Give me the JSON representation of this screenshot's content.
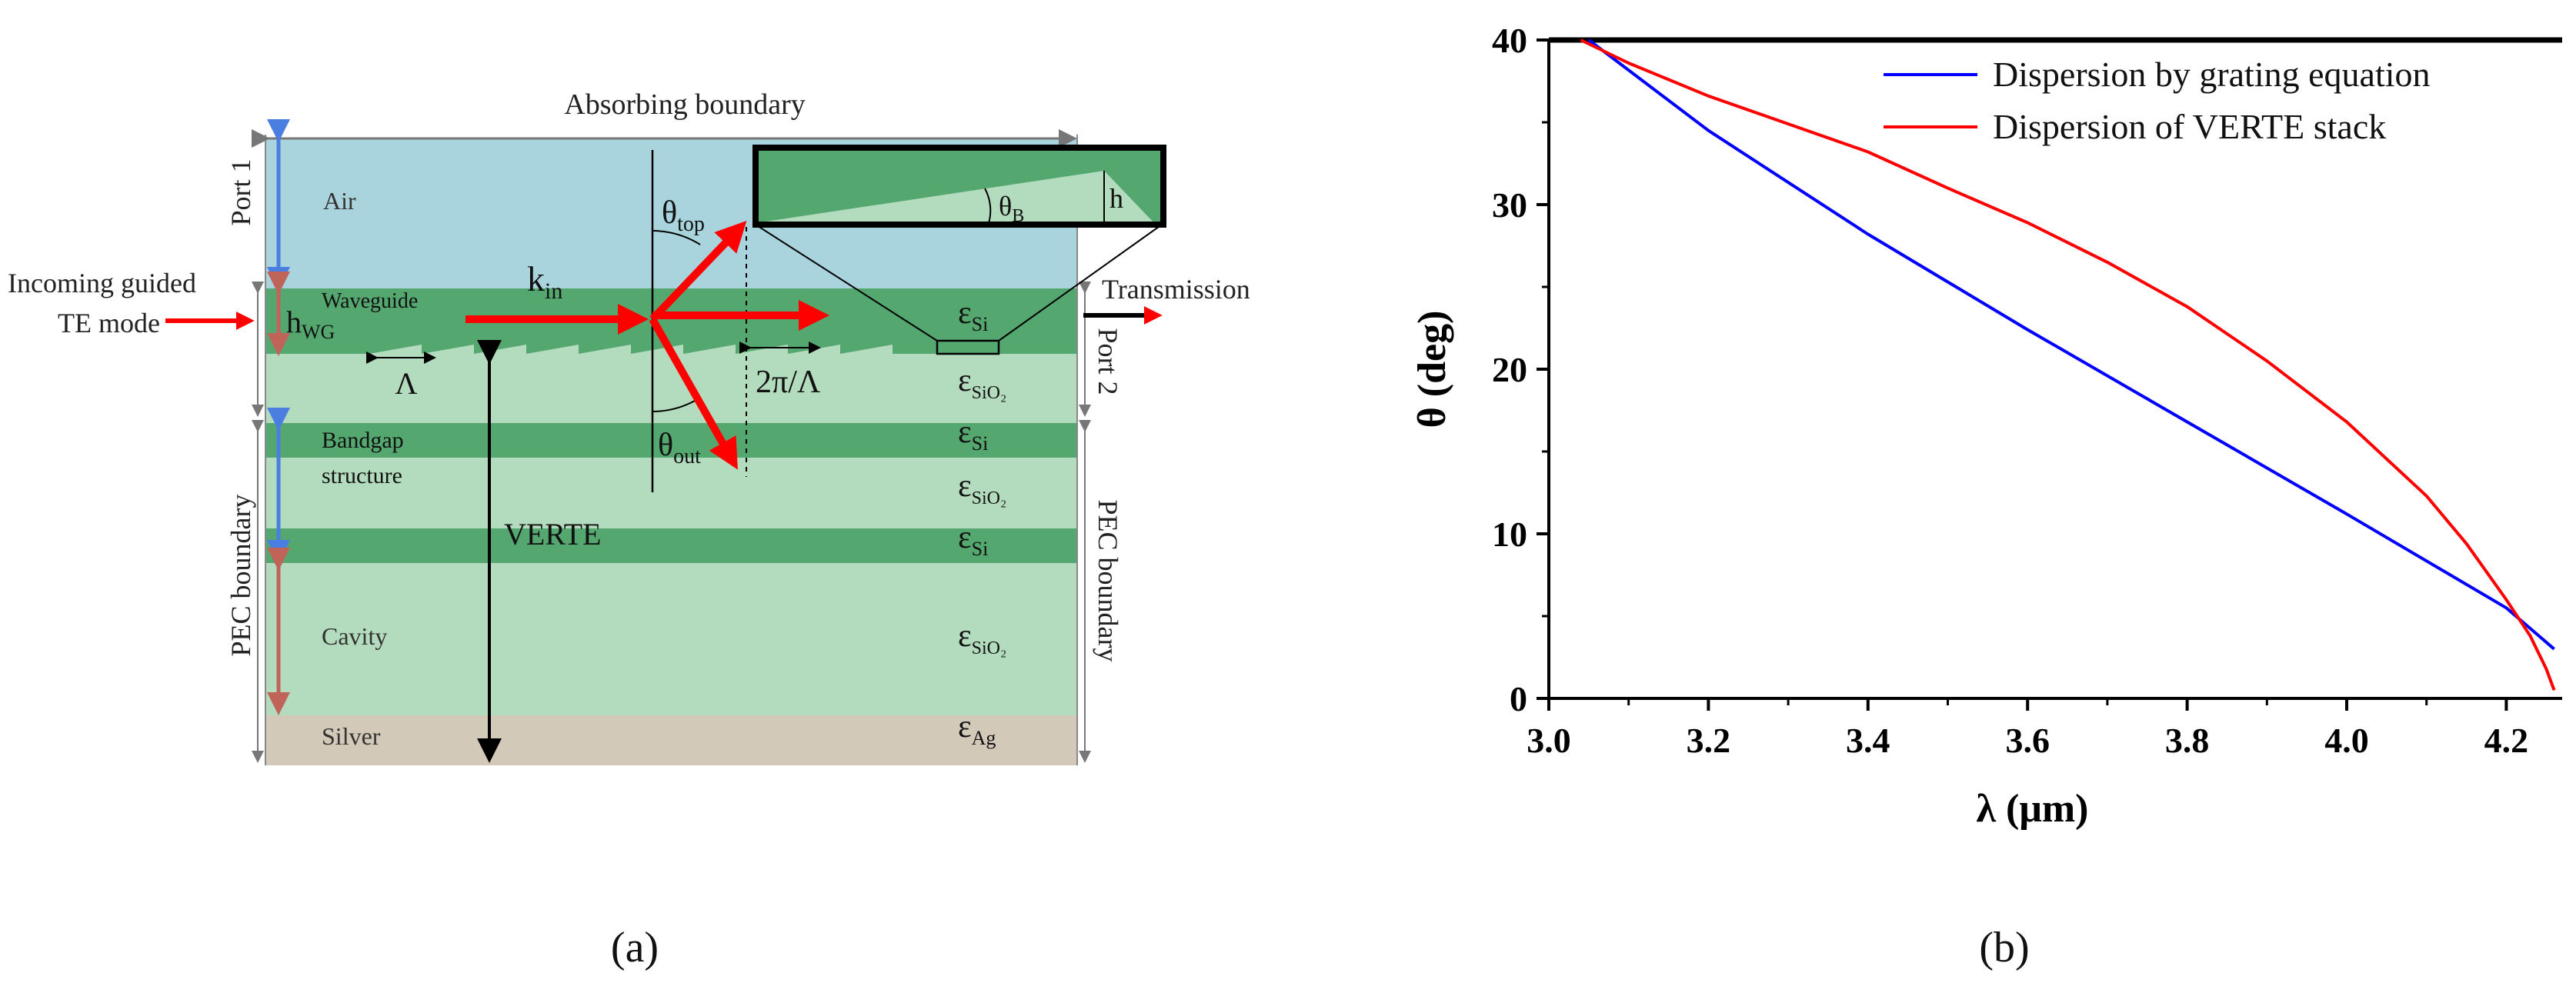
{
  "figure": {
    "panel_a": {
      "caption": "(a)",
      "absorbing_boundary": "Absorbing boundary",
      "port1": "Port 1",
      "port2": "Port 2",
      "pec_left": "PEC boundary",
      "pec_right": "PEC boundary",
      "incoming_line1": "Incoming guided",
      "incoming_line2": "TE mode",
      "transmission": "Transmission",
      "layers": {
        "air": "Air",
        "waveguide": "Waveguide",
        "bandgap_line1": "Bandgap",
        "bandgap_line2": "structure",
        "cavity": "Cavity",
        "silver": "Silver"
      },
      "h_wg": {
        "main": "h",
        "sub": "WG"
      },
      "period": "Λ",
      "k_in": {
        "main": "k",
        "sub": "in"
      },
      "theta_top": {
        "main": "θ",
        "sub": "top"
      },
      "theta_out": {
        "main": "θ",
        "sub": "out"
      },
      "two_pi_over_lambda": "2π/Λ",
      "verte": "VERTE",
      "inset_theta_b": {
        "main": "θ",
        "sub": "B"
      },
      "inset_h": "h",
      "epsilons": {
        "si1": {
          "main": "ε",
          "sub": "Si"
        },
        "sio2_1": {
          "main": "ε",
          "sub": "SiO₂"
        },
        "si2": {
          "main": "ε",
          "sub": "Si"
        },
        "sio2_2": {
          "main": "ε",
          "sub": "SiO₂"
        },
        "si3": {
          "main": "ε",
          "sub": "Si"
        },
        "sio2_3": {
          "main": "ε",
          "sub": "SiO₂"
        },
        "ag": {
          "main": "ε",
          "sub": "Ag"
        }
      },
      "colors": {
        "air": "#a9d4dd",
        "waveguide": "#55a770",
        "sio2": "#b3dbbd",
        "silver": "#d3c9b8",
        "arrow_red": "#ff0000",
        "port_blue": "#4a7ee0",
        "port_brown": "#c0645a"
      }
    },
    "panel_b": {
      "caption": "(b)"
    }
  },
  "chart_data": {
    "type": "line",
    "xlabel": "λ (μm)",
    "ylabel": "θ (deg)",
    "xlim": [
      3.0,
      4.27
    ],
    "ylim": [
      0,
      40
    ],
    "xticks": [
      "3.0",
      "3.2",
      "3.4",
      "3.6",
      "3.8",
      "4.0",
      "4.2"
    ],
    "yticks": [
      "0",
      "10",
      "20",
      "30",
      "40"
    ],
    "grid": false,
    "legend_position": "top-right",
    "series": [
      {
        "name": "Dispersion by grating equation",
        "color": "#0000ff",
        "x": [
          3.05,
          3.2,
          3.4,
          3.6,
          3.8,
          4.0,
          4.2,
          4.26
        ],
        "y": [
          40.0,
          34.5,
          28.2,
          22.4,
          16.8,
          11.2,
          5.5,
          3.0
        ]
      },
      {
        "name": "Dispersion of VERTE stack",
        "color": "#ff0000",
        "x": [
          3.04,
          3.1,
          3.2,
          3.3,
          3.4,
          3.5,
          3.6,
          3.7,
          3.8,
          3.9,
          4.0,
          4.1,
          4.15,
          4.2,
          4.23,
          4.25,
          4.26
        ],
        "y": [
          40.0,
          38.6,
          36.6,
          34.9,
          33.2,
          31.0,
          28.9,
          26.5,
          23.8,
          20.5,
          16.8,
          12.3,
          9.4,
          6.0,
          3.8,
          1.8,
          0.5
        ]
      }
    ]
  }
}
